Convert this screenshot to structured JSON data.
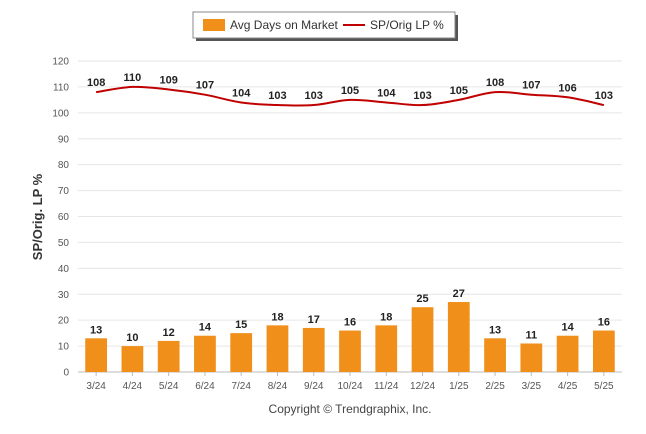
{
  "chart_data": {
    "type": "bar",
    "categories": [
      "3/24",
      "4/24",
      "5/24",
      "6/24",
      "7/24",
      "8/24",
      "9/24",
      "10/24",
      "11/24",
      "12/24",
      "1/25",
      "2/25",
      "3/25",
      "4/25",
      "5/25"
    ],
    "series": [
      {
        "name": "Avg Days on Market",
        "type": "bar",
        "color": "#f0901a",
        "values": [
          13,
          10,
          12,
          14,
          15,
          18,
          17,
          16,
          18,
          25,
          27,
          13,
          11,
          14,
          16
        ]
      },
      {
        "name": "SP/Orig LP %",
        "type": "line",
        "color": "#c00000",
        "values": [
          108,
          110,
          109,
          107,
          104,
          103,
          103,
          105,
          104,
          103,
          105,
          108,
          107,
          106,
          103
        ]
      }
    ],
    "ylabel": "SP/Orig. LP %",
    "ylim": [
      0,
      120
    ],
    "yticks": [
      0,
      10,
      20,
      30,
      40,
      50,
      60,
      70,
      80,
      90,
      100,
      110,
      120
    ],
    "grid": true,
    "legend": "top-center"
  },
  "legend": {
    "bar_label": "Avg Days on Market",
    "line_label": "SP/Orig LP %"
  },
  "footer": {
    "copyright": "Copyright © Trendgraphix, Inc."
  }
}
